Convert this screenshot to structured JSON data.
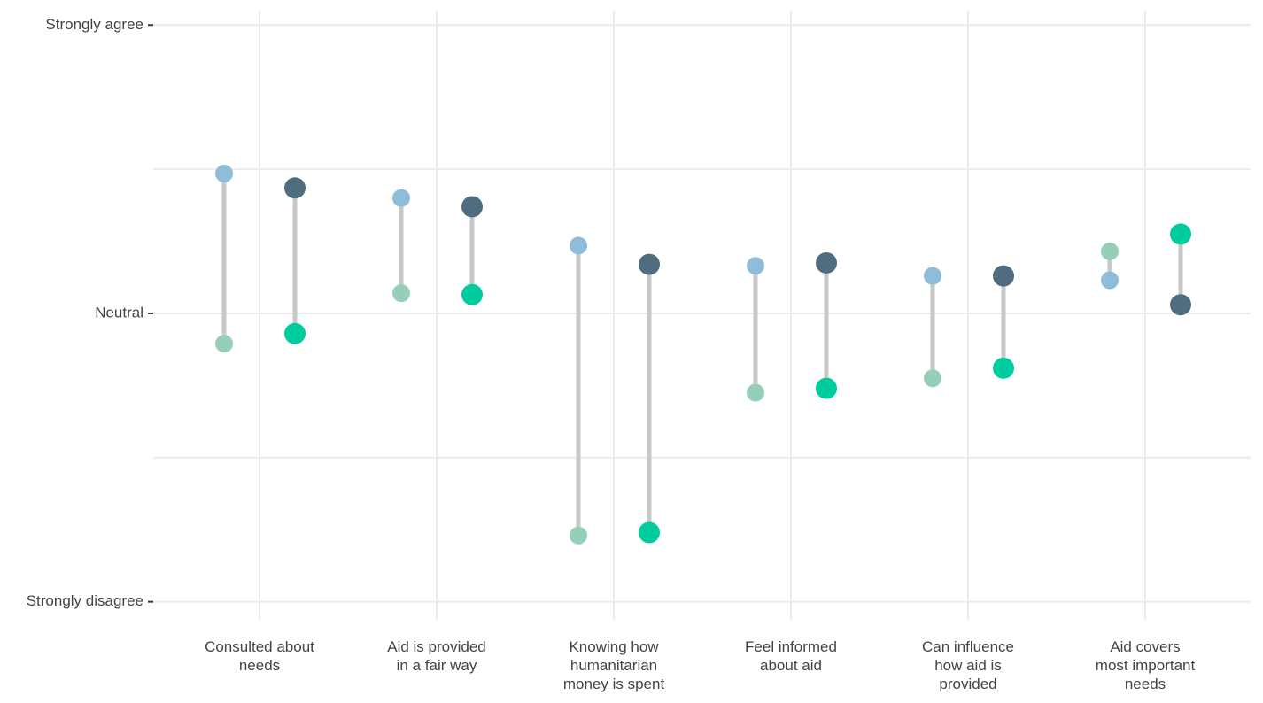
{
  "chart_data": {
    "type": "dumbbell",
    "categories": [
      "Consulted about\nneeds",
      "Aid is provided\nin a fair way",
      "Knowing how\nhumanitarian\nmoney is spent",
      "Feel informed\nabout aid",
      "Can influence\nhow aid is\nprovided",
      "Aid covers\nmost important\nneeds"
    ],
    "series": [
      {
        "color": "#8fbcd8",
        "values": [
          3.97,
          3.8,
          3.47,
          3.33,
          3.26,
          3.23
        ]
      },
      {
        "color": "#95cfb8",
        "values": [
          2.79,
          3.14,
          1.46,
          2.45,
          2.55,
          3.43
        ]
      },
      {
        "color": "#4f6d7f",
        "values": [
          3.87,
          3.74,
          3.34,
          3.35,
          3.26,
          3.06
        ]
      },
      {
        "color": "#00cc9f",
        "values": [
          2.86,
          3.13,
          1.48,
          2.48,
          2.62,
          3.55
        ]
      }
    ],
    "connector_color": "#c8c8c8",
    "ylim": [
      0.875,
      5.1
    ],
    "yticks": [
      {
        "value": 1,
        "label": "Strongly disagree"
      },
      {
        "value": 3,
        "label": "Neutral"
      },
      {
        "value": 5,
        "label": "Strongly agree"
      }
    ],
    "minor_grid": [
      2,
      4
    ],
    "grid": true
  }
}
